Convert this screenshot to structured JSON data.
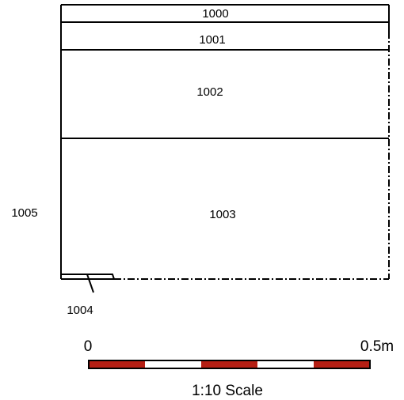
{
  "section": {
    "contexts": {
      "c1000": "1000",
      "c1001": "1001",
      "c1002": "1002",
      "c1003": "1003",
      "c1004": "1004",
      "c1005": "1005"
    }
  },
  "scale_bar": {
    "start_label": "0",
    "end_label": "0.5m",
    "caption": "1:10 Scale",
    "colors": {
      "filled": "#b51f14",
      "empty": "#ffffff",
      "outline": "#000000"
    }
  }
}
